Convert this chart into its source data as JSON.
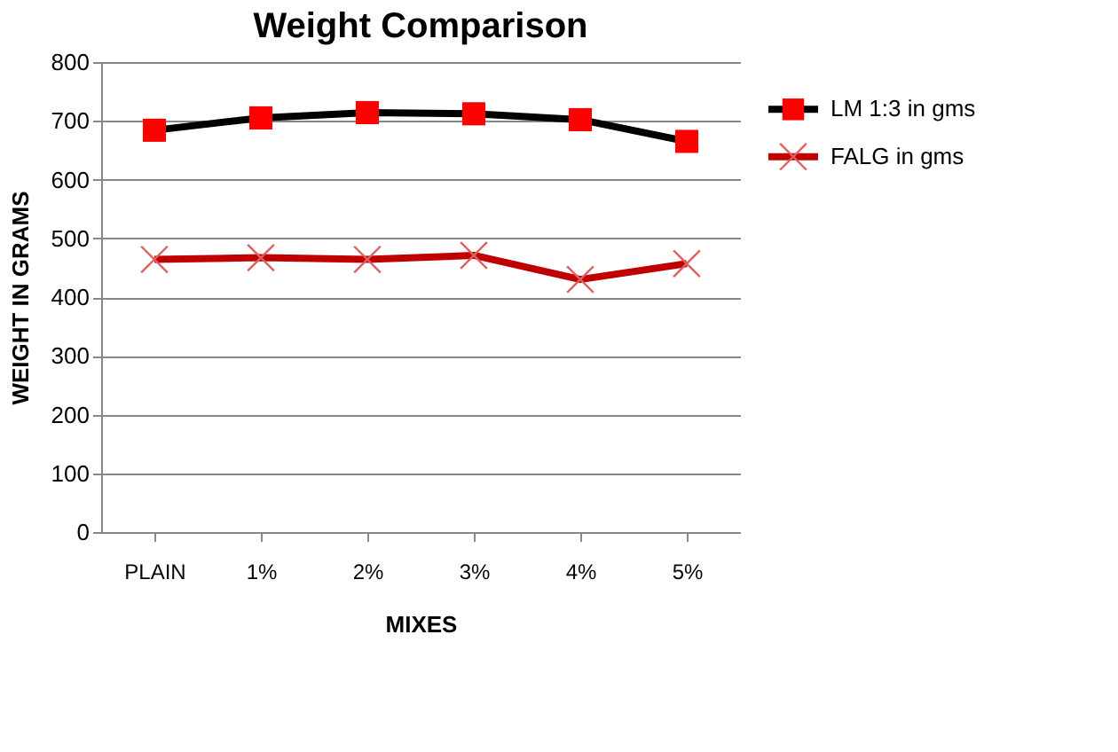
{
  "chart_data": {
    "type": "line",
    "title": "Weight Comparison",
    "xlabel": "MIXES",
    "ylabel": "WEIGHT IN GRAMS",
    "categories": [
      "PLAIN",
      "1%",
      "2%",
      "3%",
      "4%",
      "5%"
    ],
    "series": [
      {
        "name": "LM 1:3 in gms",
        "color": "#000000",
        "colors": [
          "#ff0000",
          "#ff0000",
          "#ff0000",
          "#ff0000",
          "#ff0000",
          "#ff0000"
        ],
        "marker": "square",
        "values": [
          684,
          705,
          714,
          712,
          702,
          665
        ]
      },
      {
        "name": "FALG in gms",
        "color": "#c00000",
        "colors": [
          "#e06060",
          "#e06060",
          "#e06060",
          "#e06060",
          "#e06060",
          "#e06060"
        ],
        "marker": "cross",
        "values": [
          464,
          467,
          464,
          471,
          430,
          457
        ]
      }
    ],
    "ylim": [
      0,
      800
    ],
    "yticks": [
      0,
      100,
      200,
      300,
      400,
      500,
      600,
      700,
      800
    ],
    "grid": "y",
    "legend": "right",
    "line_style": "solid"
  }
}
